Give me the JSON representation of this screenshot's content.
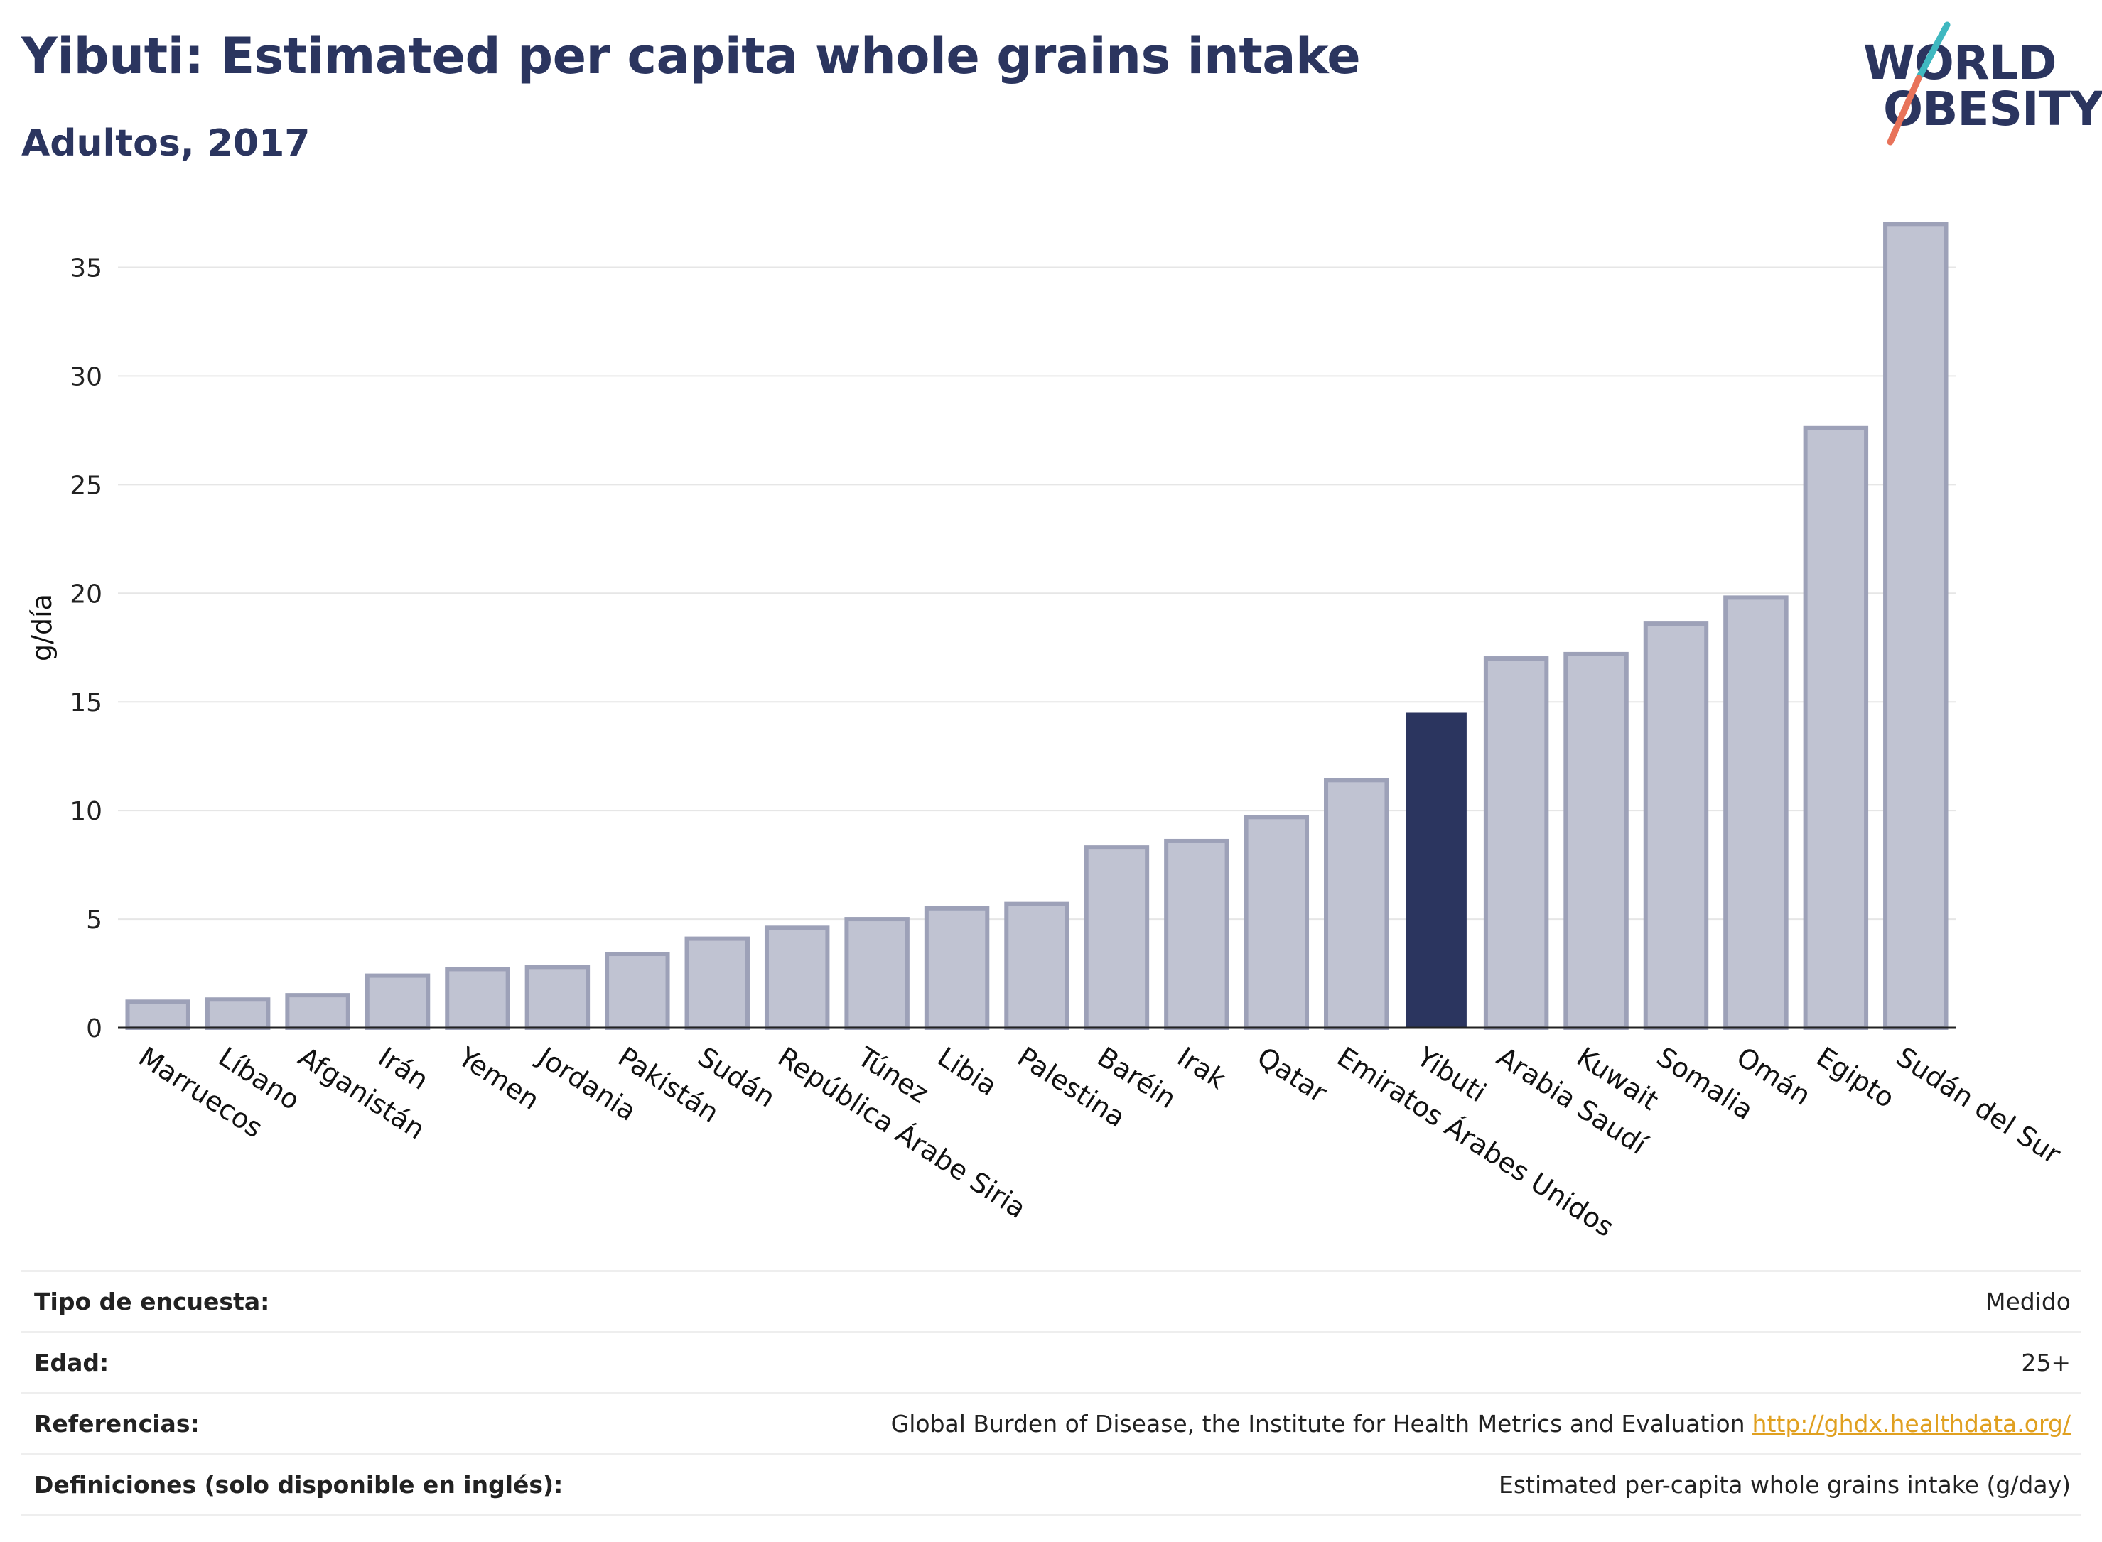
{
  "header": {
    "title": "Yibuti: Estimated per capita whole grains intake",
    "subtitle": "Adultos, 2017"
  },
  "logo": {
    "line1": "WORLD",
    "line2": "OBESITY",
    "colors": {
      "text": "#2b355f",
      "teal": "#3fb8c0",
      "coral": "#e8735a"
    }
  },
  "chart_data": {
    "type": "bar",
    "ylabel": "g/día",
    "xlabel": "",
    "ylim": [
      0,
      37.5
    ],
    "yticks": [
      0,
      5,
      10,
      15,
      20,
      25,
      30,
      35
    ],
    "grid": true,
    "highlight": "Yibuti",
    "colors": {
      "bar": "#c0c3d2",
      "bar_edge": "#9da1b8",
      "highlight": "#2b355f",
      "grid": "#e6e6e6",
      "axis": "#222222"
    },
    "categories": [
      "Marruecos",
      "Líbano",
      "Afganistán",
      "Irán",
      "Yemen",
      "Jordania",
      "Pakistán",
      "Sudán",
      "República Árabe Siria",
      "Túnez",
      "Libia",
      "Palestina",
      "Baréin",
      "Irak",
      "Qatar",
      "Emiratos Árabes Unidos",
      "Yibuti",
      "Arabia Saudí",
      "Kuwait",
      "Somalia",
      "Omán",
      "Egipto",
      "Sudán del Sur"
    ],
    "values": [
      1.2,
      1.3,
      1.5,
      2.4,
      2.7,
      2.8,
      3.4,
      4.1,
      4.6,
      5.0,
      5.5,
      5.7,
      8.3,
      8.6,
      9.7,
      11.4,
      14.5,
      17.0,
      17.2,
      18.6,
      19.8,
      27.6,
      37.0
    ]
  },
  "metadata_table": {
    "rows": [
      {
        "label": "Tipo de encuesta:",
        "value": "Medido"
      },
      {
        "label": "Edad:",
        "value": "25+"
      },
      {
        "label": "Referencias:",
        "value": "Global Burden of Disease, the Institute for Health Metrics and Evaluation",
        "link": "http://ghdx.healthdata.org/"
      },
      {
        "label": "Definiciones (solo disponible en inglés):",
        "value": "Estimated per-capita whole grains intake (g/day)"
      }
    ]
  }
}
